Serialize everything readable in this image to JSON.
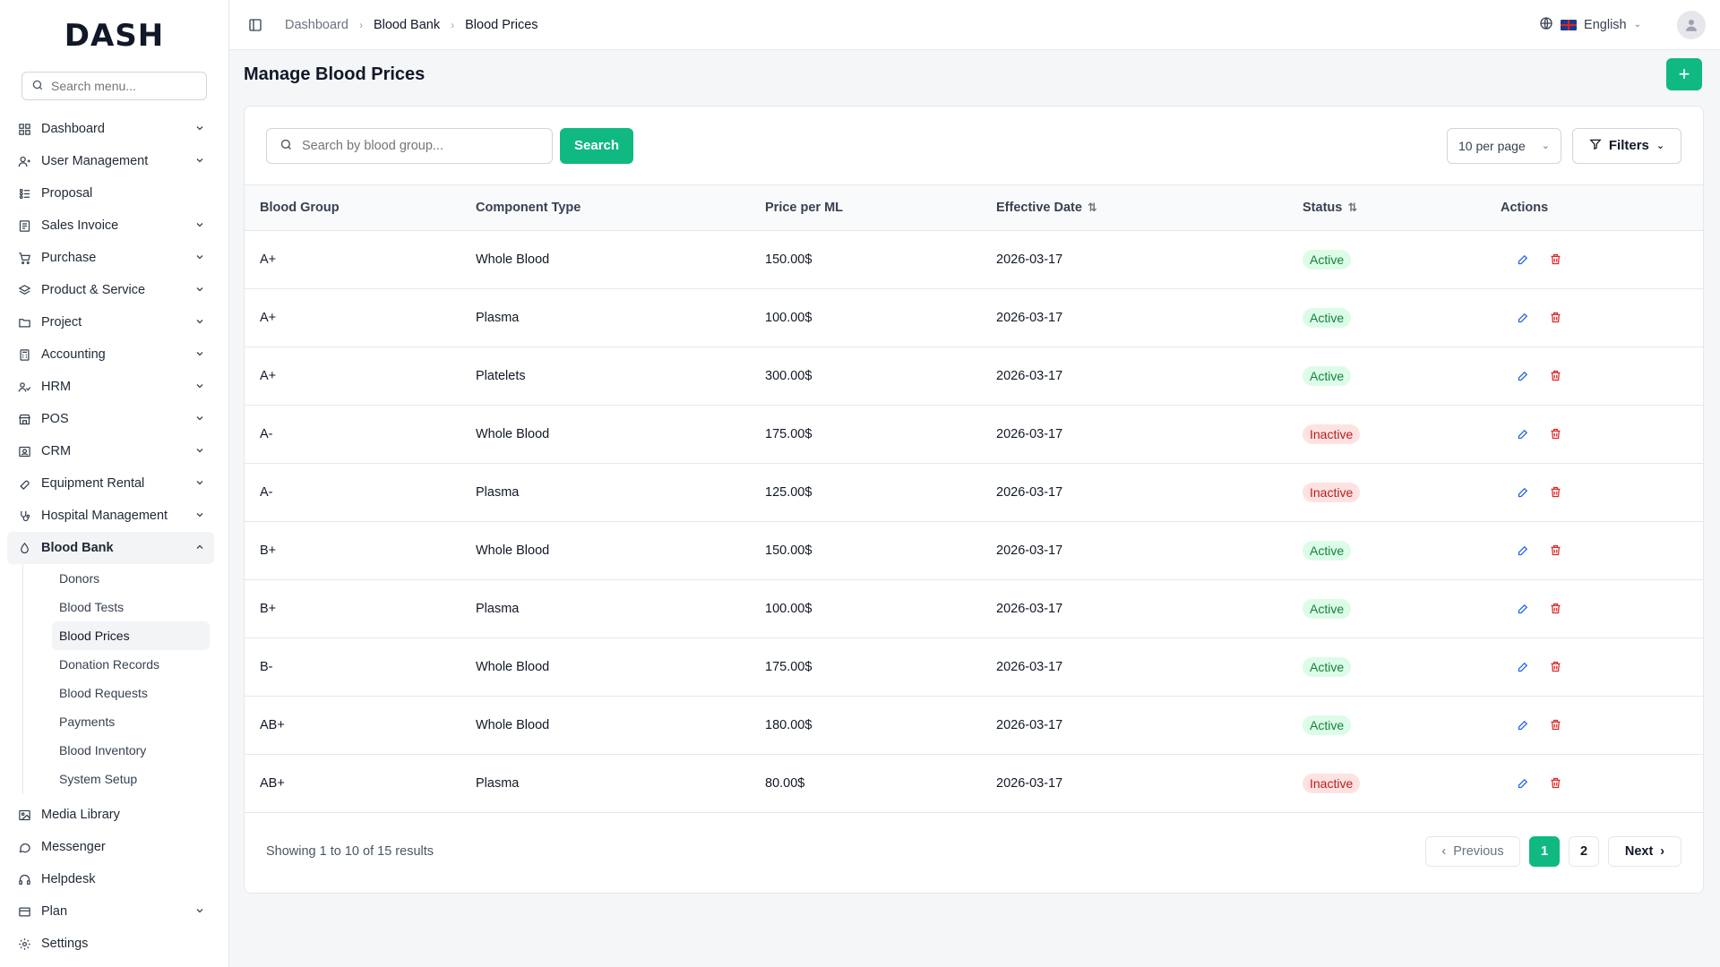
{
  "app": {
    "logo_text": "DASH",
    "accent_color": "#10b981"
  },
  "sidebar": {
    "search_placeholder": "Search menu...",
    "items": [
      {
        "label": "Dashboard",
        "icon": "grid-icon",
        "expandable": true
      },
      {
        "label": "User Management",
        "icon": "users-icon",
        "expandable": true
      },
      {
        "label": "Proposal",
        "icon": "proposal-icon",
        "expandable": false
      },
      {
        "label": "Sales Invoice",
        "icon": "invoice-icon",
        "expandable": true
      },
      {
        "label": "Purchase",
        "icon": "cart-icon",
        "expandable": true
      },
      {
        "label": "Product & Service",
        "icon": "layers-icon",
        "expandable": true
      },
      {
        "label": "Project",
        "icon": "folder-icon",
        "expandable": true
      },
      {
        "label": "Accounting",
        "icon": "calculator-icon",
        "expandable": true
      },
      {
        "label": "HRM",
        "icon": "people-icon",
        "expandable": true
      },
      {
        "label": "POS",
        "icon": "store-icon",
        "expandable": true
      },
      {
        "label": "CRM",
        "icon": "contact-icon",
        "expandable": true
      },
      {
        "label": "Equipment Rental",
        "icon": "wrench-icon",
        "expandable": true
      },
      {
        "label": "Hospital Management",
        "icon": "stethoscope-icon",
        "expandable": true
      },
      {
        "label": "Blood Bank",
        "icon": "droplet-icon",
        "expandable": true
      }
    ],
    "blood_bank_sub": [
      "Donors",
      "Blood Tests",
      "Blood Prices",
      "Donation Records",
      "Blood Requests",
      "Payments",
      "Blood Inventory",
      "System Setup"
    ],
    "bottom_items": [
      {
        "label": "Media Library",
        "icon": "image-icon",
        "expandable": false
      },
      {
        "label": "Messenger",
        "icon": "chat-icon",
        "expandable": false
      },
      {
        "label": "Helpdesk",
        "icon": "headset-icon",
        "expandable": false
      },
      {
        "label": "Plan",
        "icon": "card-icon",
        "expandable": true
      },
      {
        "label": "Settings",
        "icon": "gear-icon",
        "expandable": false
      }
    ]
  },
  "topbar": {
    "breadcrumbs": [
      "Dashboard",
      "Blood Bank",
      "Blood Prices"
    ],
    "language": "English"
  },
  "page": {
    "title": "Manage Blood Prices"
  },
  "toolbar": {
    "search_placeholder": "Search by blood group...",
    "search_button": "Search",
    "per_page": "10 per page",
    "filters": "Filters"
  },
  "table": {
    "headers": [
      "Blood Group",
      "Component Type",
      "Price per ML",
      "Effective Date",
      "Status",
      "Actions"
    ],
    "rows": [
      {
        "group": "A+",
        "component": "Whole Blood",
        "price": "150.00$",
        "date": "2026-03-17",
        "status": "Active"
      },
      {
        "group": "A+",
        "component": "Plasma",
        "price": "100.00$",
        "date": "2026-03-17",
        "status": "Active"
      },
      {
        "group": "A+",
        "component": "Platelets",
        "price": "300.00$",
        "date": "2026-03-17",
        "status": "Active"
      },
      {
        "group": "A-",
        "component": "Whole Blood",
        "price": "175.00$",
        "date": "2026-03-17",
        "status": "Inactive"
      },
      {
        "group": "A-",
        "component": "Plasma",
        "price": "125.00$",
        "date": "2026-03-17",
        "status": "Inactive"
      },
      {
        "group": "B+",
        "component": "Whole Blood",
        "price": "150.00$",
        "date": "2026-03-17",
        "status": "Active"
      },
      {
        "group": "B+",
        "component": "Plasma",
        "price": "100.00$",
        "date": "2026-03-17",
        "status": "Active"
      },
      {
        "group": "B-",
        "component": "Whole Blood",
        "price": "175.00$",
        "date": "2026-03-17",
        "status": "Active"
      },
      {
        "group": "AB+",
        "component": "Whole Blood",
        "price": "180.00$",
        "date": "2026-03-17",
        "status": "Active"
      },
      {
        "group": "AB+",
        "component": "Plasma",
        "price": "80.00$",
        "date": "2026-03-17",
        "status": "Inactive"
      }
    ]
  },
  "pagination": {
    "showing": "Showing 1 to 10 of 15 results",
    "previous": "Previous",
    "pages": [
      "1",
      "2"
    ],
    "current": "1",
    "next": "Next"
  }
}
